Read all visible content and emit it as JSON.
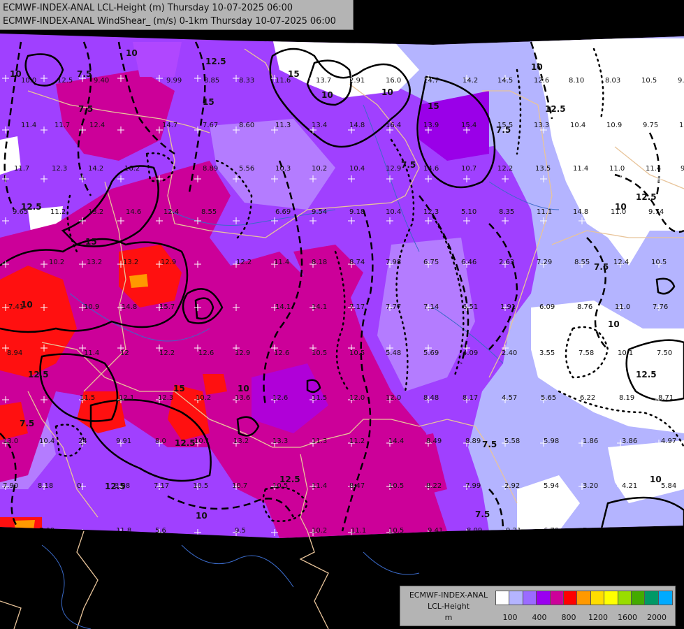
{
  "header": {
    "line1": "ECMWF-INDEX-ANAL LCL-Height (m) Thursday 10-07-2025 06:00",
    "line2": "ECMWF-INDEX-ANAL WindShear_ (m/s) 0-1km Thursday 10-07-2025 06:00"
  },
  "legend": {
    "title1": "ECMWF-INDEX-ANAL",
    "title2": "LCL-Height",
    "title3": "m",
    "colors": [
      "#ffffff",
      "#b4b4ff",
      "#9b6bff",
      "#9a00f0",
      "#cc0099",
      "#ff0000",
      "#ff9900",
      "#ffdd00",
      "#ffff00",
      "#99dd00",
      "#44aa00",
      "#009966",
      "#00aaff"
    ],
    "ticks": [
      "100",
      "400",
      "800",
      "1200",
      "1600",
      "2000"
    ]
  },
  "colors": {
    "background": "#000000",
    "white_area": "#ffffff",
    "light_lavender": "#b4b4ff",
    "violet": "#9b4bff",
    "purple": "#9a00e8",
    "magenta": "#cc0099",
    "red": "#ff1010",
    "orange": "#ff9900",
    "border_line": "#e8c49a",
    "river_line": "#3a6ac8"
  },
  "contour_labels": [
    "10",
    "12.5",
    "15",
    "7.5",
    "10",
    "15",
    "12.5",
    "15",
    "10",
    "15",
    "7.5",
    "10",
    "12.5",
    "10",
    "12.5",
    "7.5",
    "10",
    "12.5",
    "10",
    "12.5",
    "10",
    "7.5",
    "12.5",
    "15",
    "7.5",
    "10",
    "12.5",
    "10",
    "7.5",
    "7.5",
    "7.5",
    "10",
    "12.5"
  ],
  "value_labels": [
    "10.0",
    "12.5",
    "9.40",
    "9.99",
    "8.85",
    "8.33",
    "11.6",
    "13.7",
    "2.91",
    "16.0",
    "14.7",
    "14.2",
    "14.5",
    "12.6",
    "8.10",
    "8.03",
    "10.5",
    "9.8",
    "11.4",
    "11.7",
    "12.4",
    "14.7",
    "7.67",
    "8.60",
    "11.3",
    "13.4",
    "14.8",
    "16.4",
    "13.9",
    "15.4",
    "15.5",
    "13.3",
    "10.4",
    "10.9",
    "9.75",
    "12",
    "11.7",
    "12.3",
    "14.2",
    "16.2",
    "8.89",
    "5.56",
    "10.3",
    "10.2",
    "10.4",
    "12.9",
    "14.6",
    "10.7",
    "12.2",
    "13.5",
    "11.4",
    "11.0",
    "11.4",
    "9",
    "9.65",
    "11.2",
    "13.2",
    "14.6",
    "12.4",
    "8.55",
    "6.69",
    "9.54",
    "9.18",
    "10.4",
    "12.3",
    "5.10",
    "8.35",
    "11.1",
    "14.8",
    "11.0",
    "9.74",
    "10.2",
    "13.2",
    "13.2",
    "12.9",
    "12.2",
    "11.4",
    "8.18",
    "8.74",
    "7.98",
    "6.75",
    "6.46",
    "2.63",
    "7.29",
    "8.55",
    "12.4",
    "10.5",
    "7.41",
    "10.9",
    "14.8",
    "15.7",
    "14.1",
    "14.1",
    "7.17",
    "7.77",
    "7.14",
    "6.51",
    "1.91",
    "6.09",
    "8.76",
    "11.0",
    "7.76",
    "8.94",
    "11.4",
    "12",
    "12.2",
    "12.6",
    "12.9",
    "12.6",
    "10.5",
    "10.5",
    "5.48",
    "5.69",
    "4.09",
    "2.40",
    "3.55",
    "7.58",
    "10.1",
    "7.50",
    "11.5",
    "12.1",
    "12.3",
    "10.2",
    "13.6",
    "12.6",
    "11.5",
    "12.0",
    "12.0",
    "8.48",
    "8.17",
    "4.57",
    "5.65",
    "6.22",
    "8.19",
    "8.71",
    "13.0",
    "10.4",
    "24",
    "9.91",
    "8.0",
    "10.1",
    "13.2",
    "13.3",
    "11.3",
    "11.2",
    "14.4",
    "8.49",
    "8.89",
    "5.58",
    "5.98",
    "1.86",
    "3.86",
    "4.97",
    "7.90",
    "8.18",
    "0",
    "3.08",
    "7.17",
    "10.5",
    "10.7",
    "10.5",
    "11.4",
    "8.47",
    "10.5",
    "8.22",
    "7.99",
    "2.92",
    "5.94",
    "3.20",
    "4.21",
    "5.84",
    "7.09",
    "11.8",
    "5.6",
    "9.5",
    "10.2",
    "11.1",
    "10.5",
    "9.41",
    "8.09",
    "9.21",
    "6.79",
    "7.42",
    "7.48",
    "8.44"
  ]
}
